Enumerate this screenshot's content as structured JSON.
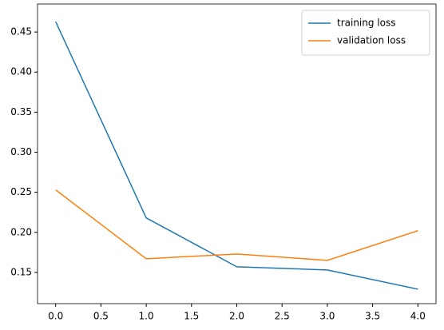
{
  "chart_data": {
    "type": "line",
    "x": [
      0,
      1,
      2,
      3,
      4
    ],
    "series": [
      {
        "name": "training loss",
        "color": "#1f77b4",
        "values": [
          0.463,
          0.218,
          0.157,
          0.153,
          0.129
        ]
      },
      {
        "name": "validation loss",
        "color": "#ff7f0e",
        "values": [
          0.253,
          0.167,
          0.173,
          0.165,
          0.202
        ]
      }
    ],
    "xlim": [
      -0.2,
      4.2
    ],
    "xticks": [
      {
        "value": 0,
        "label": "0.0"
      },
      0.5,
      {
        "value": 1,
        "label": "1.0"
      },
      1.5,
      {
        "value": 2,
        "label": "2.0"
      },
      2.5,
      {
        "value": 3,
        "label": "3.0"
      },
      3.5,
      {
        "value": 4,
        "label": "4.0"
      }
    ],
    "ylim": [
      0.111,
      0.485
    ],
    "yticks": [
      0.15,
      {
        "value": 0.2,
        "label": "0.20"
      },
      0.25,
      {
        "value": 0.3,
        "label": "0.30"
      },
      0.35,
      {
        "value": 0.4,
        "label": "0.40"
      },
      0.45
    ],
    "grid": false,
    "legend": "upper right"
  }
}
